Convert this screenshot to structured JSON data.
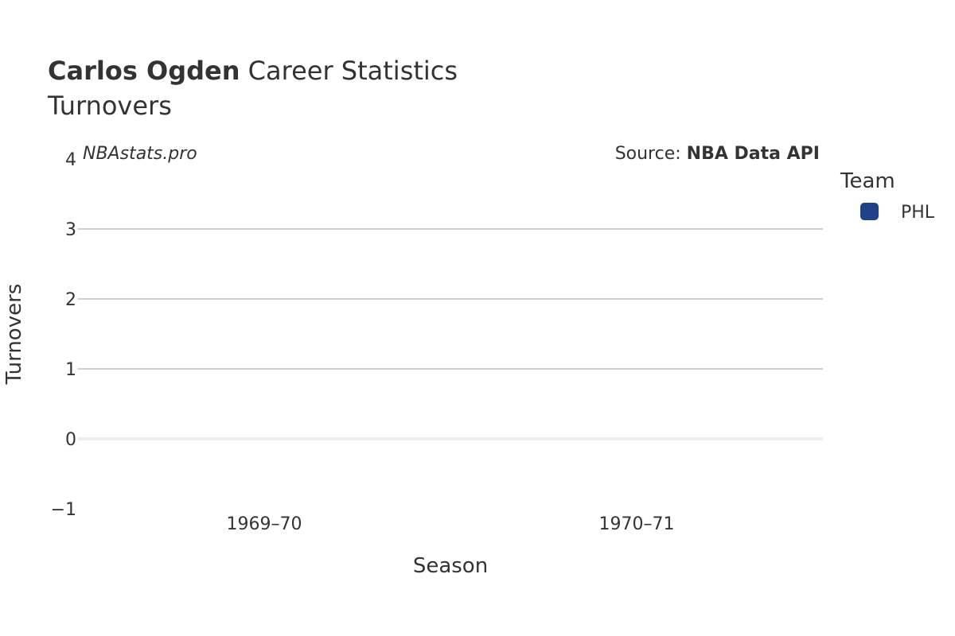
{
  "chart_data": {
    "type": "bar",
    "title": {
      "bold": "Carlos Ogden",
      "rest": " Career Statistics"
    },
    "subtitle": "Turnovers",
    "xlabel": "Season",
    "ylabel": "Turnovers",
    "categories": [
      "1969–70",
      "1970–71"
    ],
    "series": [
      {
        "name": "PHL",
        "color": "#1f4287",
        "values": [
          0,
          0
        ]
      }
    ],
    "ylim": [
      -1,
      4
    ],
    "yticks": [
      {
        "value": 4,
        "label": "4"
      },
      {
        "value": 3,
        "label": "3"
      },
      {
        "value": 2,
        "label": "2"
      },
      {
        "value": 1,
        "label": "1"
      },
      {
        "value": 0,
        "label": "0"
      },
      {
        "value": -1,
        "label": "−1"
      }
    ],
    "grid": true,
    "legend": {
      "title": "Team",
      "placement": "right"
    },
    "watermark": "NBAstats.pro",
    "source": {
      "prefix": "Source: ",
      "bold": "NBA Data API"
    }
  }
}
